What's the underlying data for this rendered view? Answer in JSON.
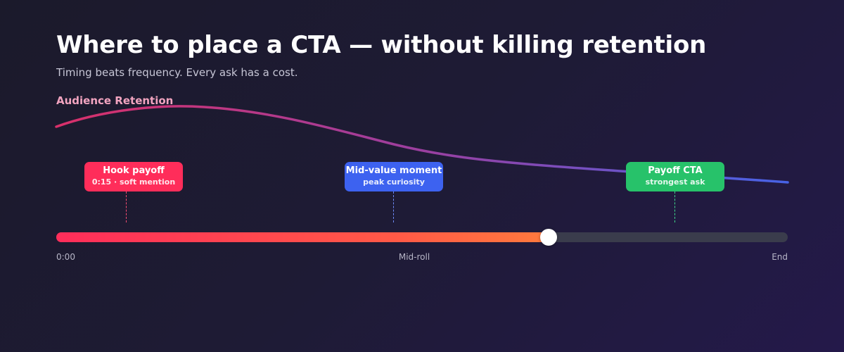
{
  "header": {
    "title": "Where to place a CTA — without killing retention",
    "subtitle": "Timing beats frequency. Every ask has a cost."
  },
  "retention_curve": {
    "label": "Audience Retention",
    "gradient_colors": [
      "#d9306a",
      "#9b3fa0",
      "#4763e6"
    ]
  },
  "markers": [
    {
      "title": "Hook payoff",
      "subtitle": "0:15 · soft mention",
      "color": "#ff2d5a"
    },
    {
      "title": "Mid-value moment",
      "subtitle": "peak curiosity",
      "color": "#3d62f0"
    },
    {
      "title": "Payoff CTA",
      "subtitle": "strongest ask",
      "color": "#27c26a"
    }
  ],
  "timeline": {
    "progress": 0.673,
    "labels": {
      "start": "0:00",
      "mid": "Mid-roll",
      "end": "End"
    },
    "fill_colors": [
      "#ff2d5a",
      "#ff7a3d"
    ],
    "track_color": "#3a3c4c"
  }
}
